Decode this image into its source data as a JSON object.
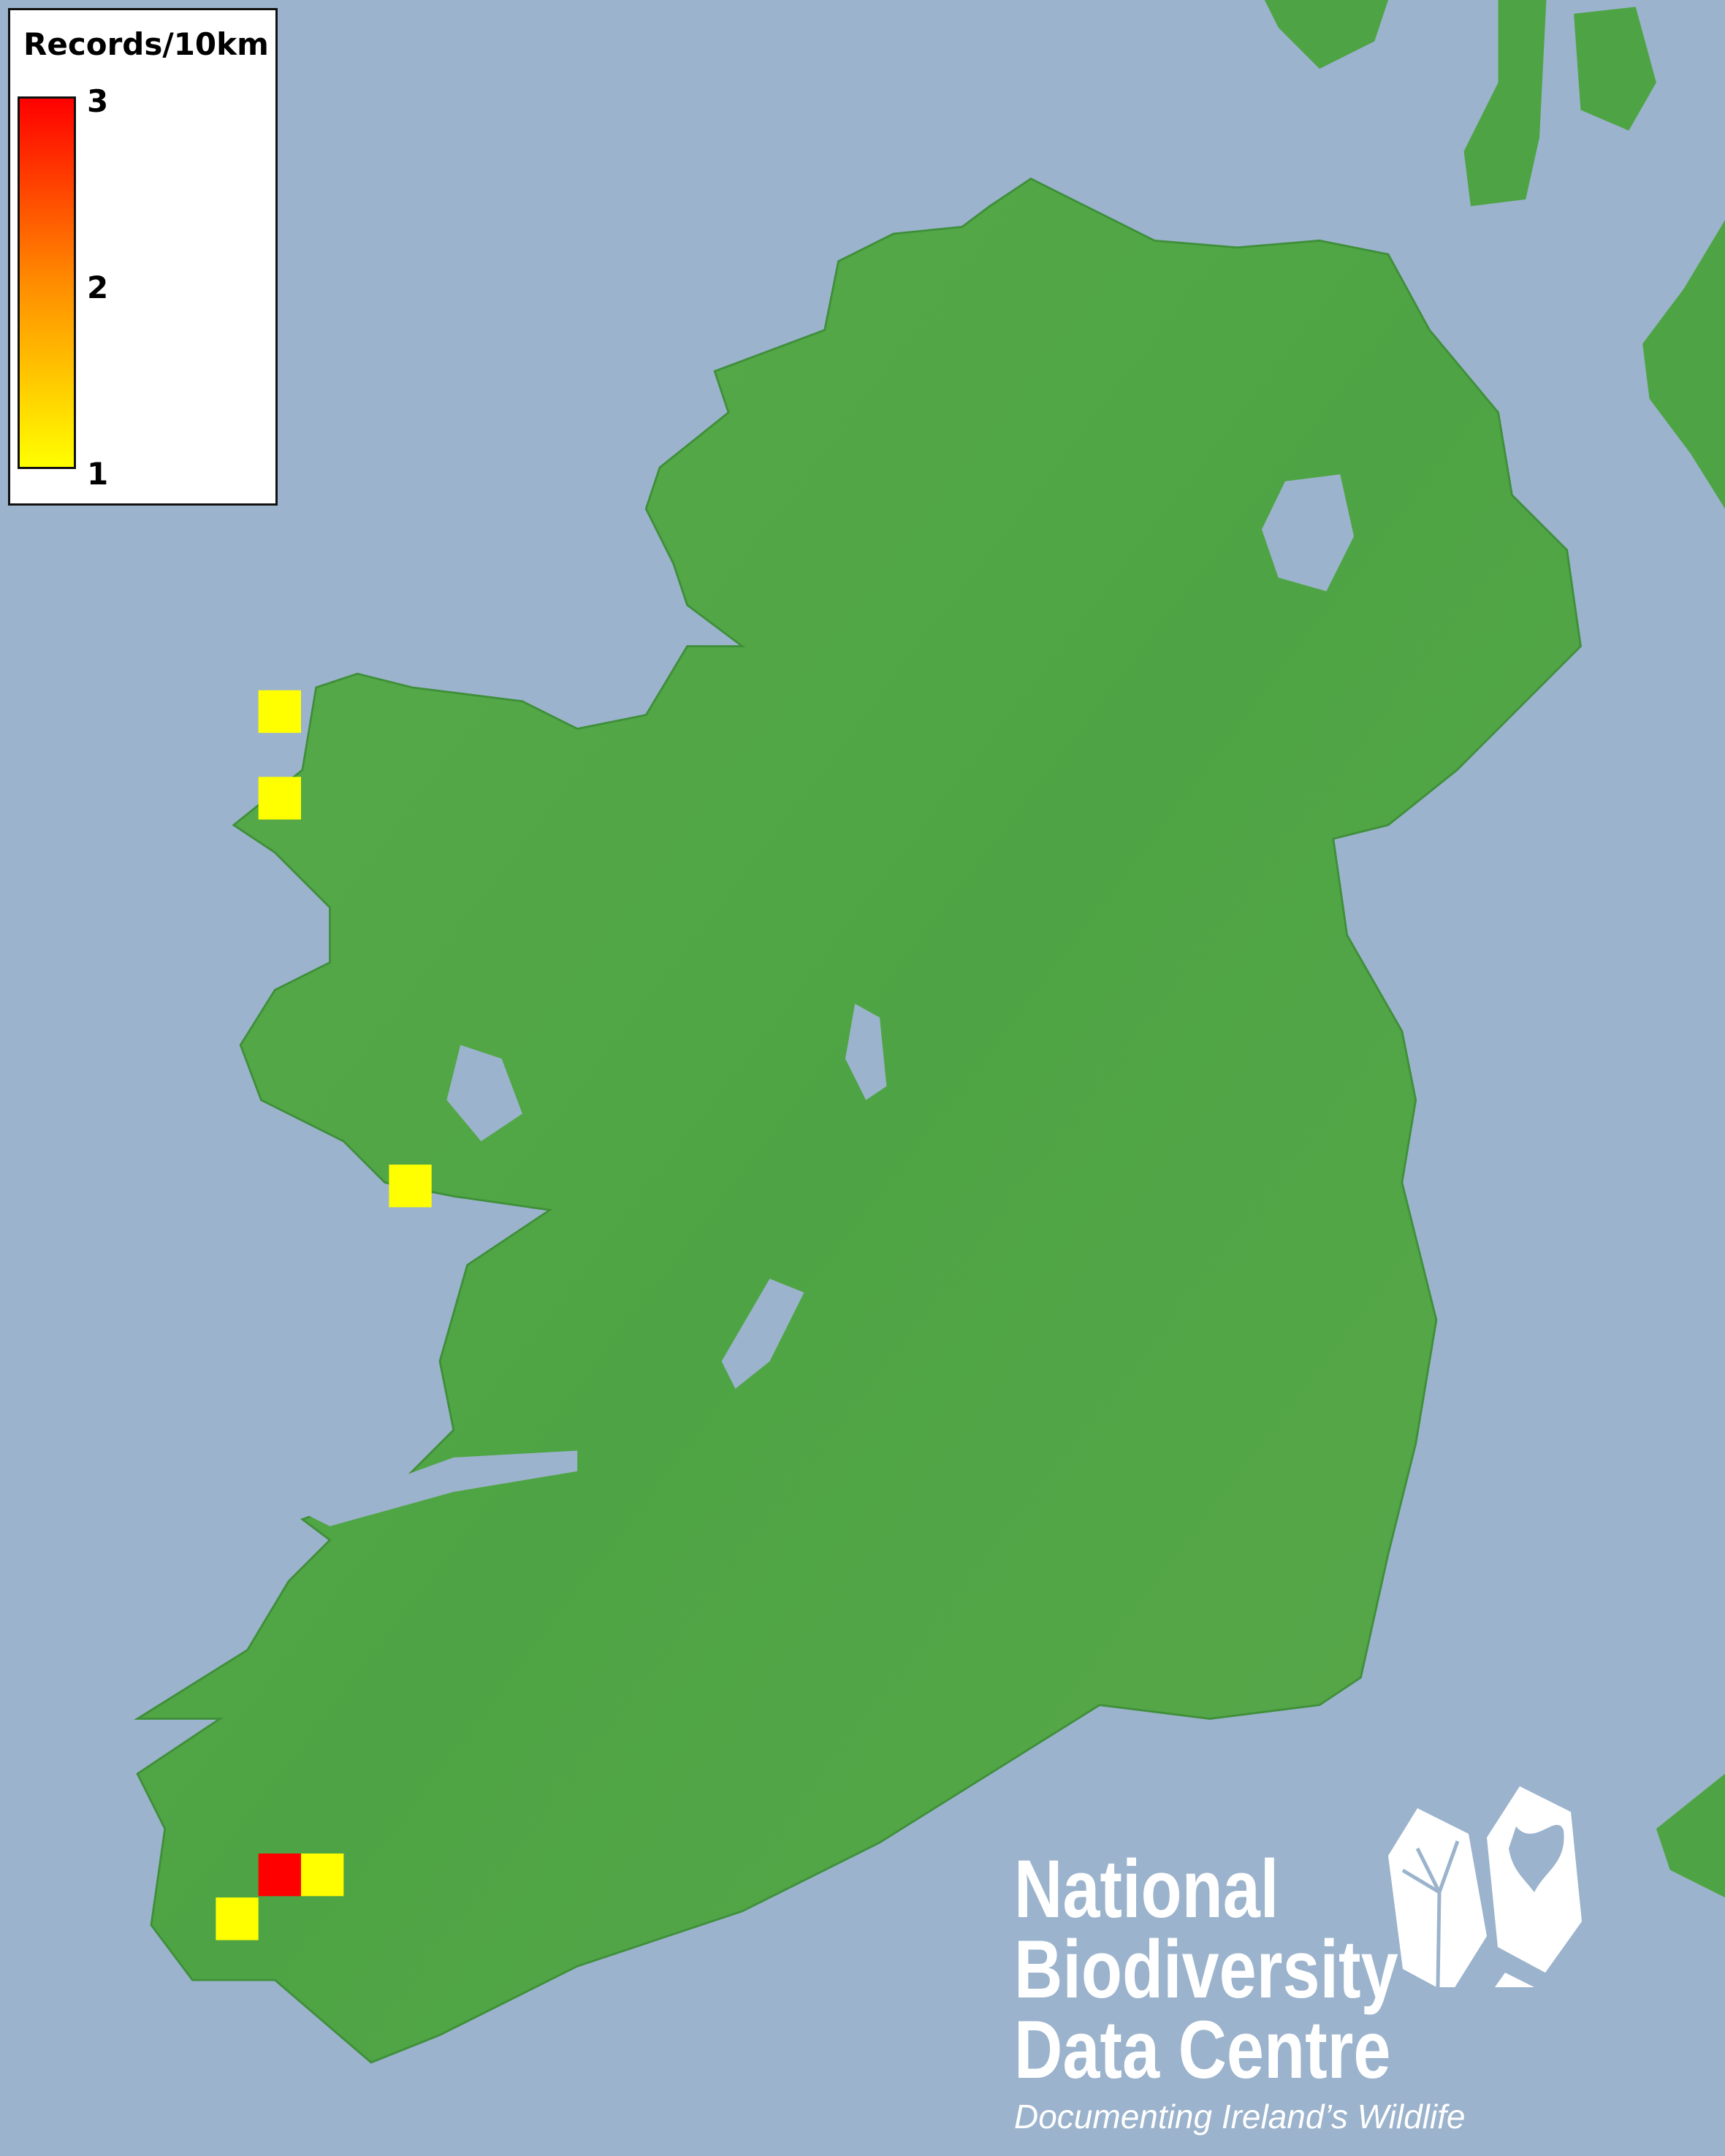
{
  "legend": {
    "title": "Records/10km",
    "ticks": [
      "3",
      "2",
      "1"
    ],
    "scale_min": 1,
    "scale_max": 3,
    "colors": {
      "min": "#ffff00",
      "mid": "#ff8c00",
      "max": "#ff0000"
    }
  },
  "map": {
    "sea_color": "#9bb3cc",
    "land_color": "#4ea444",
    "records": [
      {
        "value": 1,
        "color": "#ffff00"
      },
      {
        "value": 1,
        "color": "#ffff00"
      },
      {
        "value": 1,
        "color": "#ffff00"
      },
      {
        "value": 3,
        "color": "#ff0000"
      },
      {
        "value": 1,
        "color": "#ffff00"
      },
      {
        "value": 1,
        "color": "#ffff00"
      }
    ]
  },
  "logo": {
    "line1": "National",
    "line2": "Biodiversity",
    "line3": "Data Centre",
    "tagline": "Documenting Ireland’s Wildlife",
    "icons": [
      "plant-icon",
      "butterfly-icon",
      "seahorse-icon"
    ]
  }
}
